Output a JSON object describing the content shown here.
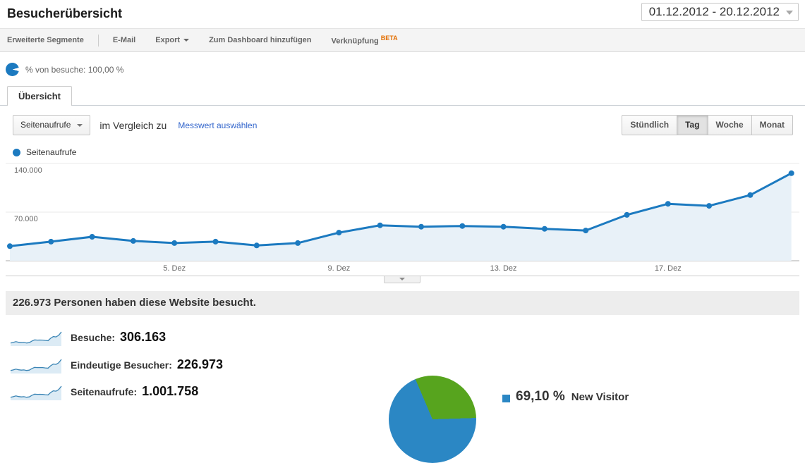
{
  "header": {
    "title": "Besucherübersicht",
    "date_range": "01.12.2012 - 20.12.2012"
  },
  "toolbar": {
    "advanced_segments": "Erweiterte Segmente",
    "email": "E-Mail",
    "export": "Export",
    "add_to_dashboard": "Zum Dashboard hinzufügen",
    "shortcut": "Verknüpfung",
    "beta": "BETA"
  },
  "segment": {
    "label": "% von besuche: 100,00 %"
  },
  "tabs": {
    "overview": "Übersicht"
  },
  "controls": {
    "metric_selector": "Seitenaufrufe",
    "compare_text": "im Vergleich zu",
    "select_metric_link": "Messwert auswählen",
    "granularity": [
      "Stündlich",
      "Tag",
      "Woche",
      "Monat"
    ],
    "granularity_selected": "Tag"
  },
  "chart_legend": {
    "label": "Seitenaufrufe"
  },
  "chart_data": [
    {
      "type": "line",
      "title": "Seitenaufrufe",
      "x_axis": "Tage, 1.–20. Dezember 2012",
      "values": [
        21000,
        27500,
        34500,
        28500,
        25500,
        27500,
        22000,
        25500,
        40500,
        51000,
        49000,
        50000,
        49000,
        46000,
        43500,
        66000,
        82000,
        79000,
        94500,
        126000
      ],
      "x_ticks": [
        {
          "index": 4,
          "label": "5. Dez"
        },
        {
          "index": 8,
          "label": "9. Dez"
        },
        {
          "index": 12,
          "label": "13. Dez"
        },
        {
          "index": 16,
          "label": "17. Dez"
        }
      ],
      "y_ticks": [
        {
          "value": 70000,
          "label": "70.000"
        },
        {
          "value": 140000,
          "label": "140.000"
        }
      ],
      "ylim": [
        0,
        144000
      ],
      "grid": "horizontal",
      "legend_position": "top-left",
      "colors": {
        "line": "#1c7ac0",
        "area": "#e8f1f8"
      }
    },
    {
      "type": "pie",
      "labels": [
        "New Visitor"
      ],
      "values": [
        69.1
      ],
      "colors": [
        "#2b87c4",
        "#57a41e"
      ]
    }
  ],
  "summary": {
    "headline": "226.973 Personen haben diese Website besucht."
  },
  "stats": [
    {
      "label": "Besuche:",
      "value": "306.163"
    },
    {
      "label": "Eindeutige Besucher:",
      "value": "226.973"
    },
    {
      "label": "Seitenaufrufe:",
      "value": "1.001.758"
    }
  ],
  "pie": {
    "legend_value": "69,10 %",
    "legend_label": "New Visitor",
    "new_visitor_pct": 69.1,
    "colors": {
      "new_visitor": "#2b87c4",
      "other": "#57a41e"
    }
  },
  "colors": {
    "accent_blue": "#1c7ac0",
    "link_blue": "#3366cc",
    "beta_orange": "#e36e00"
  }
}
